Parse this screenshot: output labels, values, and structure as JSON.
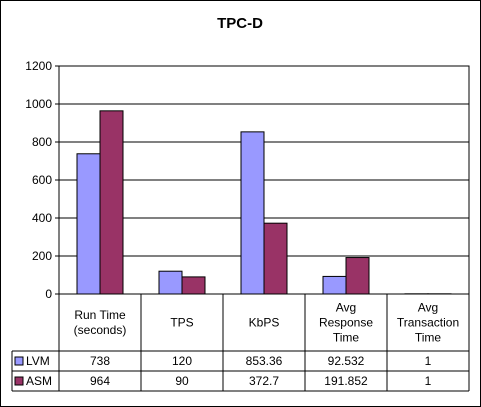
{
  "chart_data": {
    "type": "bar",
    "title": "TPC-D",
    "categories": [
      [
        "Run Time",
        "(seconds)"
      ],
      [
        "TPS"
      ],
      [
        "KbPS"
      ],
      [
        "Avg",
        "Response",
        "Time"
      ],
      [
        "Avg",
        "Transaction",
        "Time"
      ]
    ],
    "series": [
      {
        "name": "LVM",
        "color": "#9999ff",
        "values": [
          738,
          120,
          853.36,
          92.532,
          1
        ],
        "labels": [
          "738",
          "120",
          "853.36",
          "92.532",
          "1"
        ]
      },
      {
        "name": "ASM",
        "color": "#993366",
        "values": [
          964,
          90,
          372.7,
          191.852,
          1
        ],
        "labels": [
          "964",
          "90",
          "372.7",
          "191.852",
          "1"
        ]
      }
    ],
    "ylim": [
      0,
      1200
    ],
    "yticks": [
      "0",
      "200",
      "400",
      "600",
      "800",
      "1000",
      "1200"
    ],
    "grid": true,
    "legend": "data-table"
  }
}
